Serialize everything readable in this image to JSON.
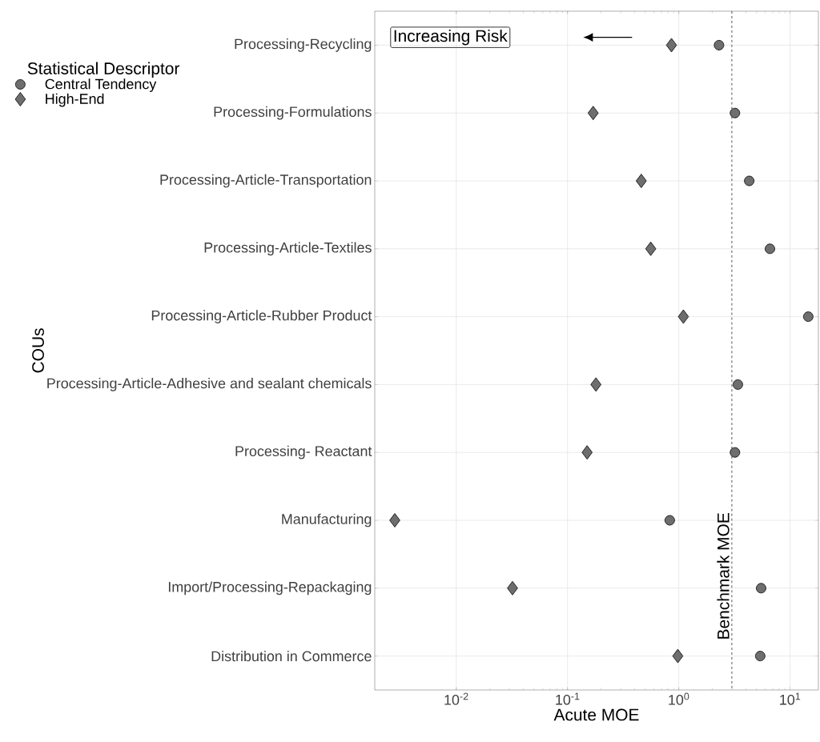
{
  "chart_data": {
    "type": "scatter",
    "xlabel": "Acute MOE",
    "ylabel": "COUs",
    "legend_title": "Statistical Descriptor",
    "categories": [
      "Processing-Recycling",
      "Processing-Formulations",
      "Processing-Article-Transportation",
      "Processing-Article-Textiles",
      "Processing-Article-Rubber Product",
      "Processing-Article-Adhesive and sealant chemicals",
      "Processing- Reactant",
      "Manufacturing",
      "Import/Processing-Repackaging",
      "Distribution in Commerce"
    ],
    "series": [
      {
        "name": "Central Tendency",
        "color": "#6e6e6e",
        "marker": "circle",
        "values": [
          2.3,
          3.2,
          4.3,
          6.6,
          14.6,
          3.4,
          3.2,
          0.83,
          5.5,
          5.4
        ]
      },
      {
        "name": "High-End",
        "color": "#6e6e6e",
        "marker": "diamond",
        "values": [
          0.86,
          0.17,
          0.46,
          0.56,
          1.1,
          0.18,
          0.15,
          0.0028,
          0.032,
          0.98
        ]
      }
    ],
    "orientation": "horizontal",
    "log": "x",
    "xlim": [
      0.00185,
      18
    ],
    "xticks": [
      {
        "value": 0.01,
        "label": "10$^{-2}$"
      },
      {
        "value": 0.1,
        "label": "10$^{-1}$"
      },
      {
        "value": 1,
        "label": "10$^{0}$"
      },
      {
        "value": 10,
        "label": "10$^{1}$"
      }
    ],
    "ref_lines": [
      {
        "axis": "x",
        "value": 3,
        "label": "Benchmark MOE",
        "line_style": "dashed",
        "color": "#555555"
      }
    ],
    "annotations": [
      "Increasing Risk"
    ],
    "grid": true,
    "legend": "top left"
  }
}
